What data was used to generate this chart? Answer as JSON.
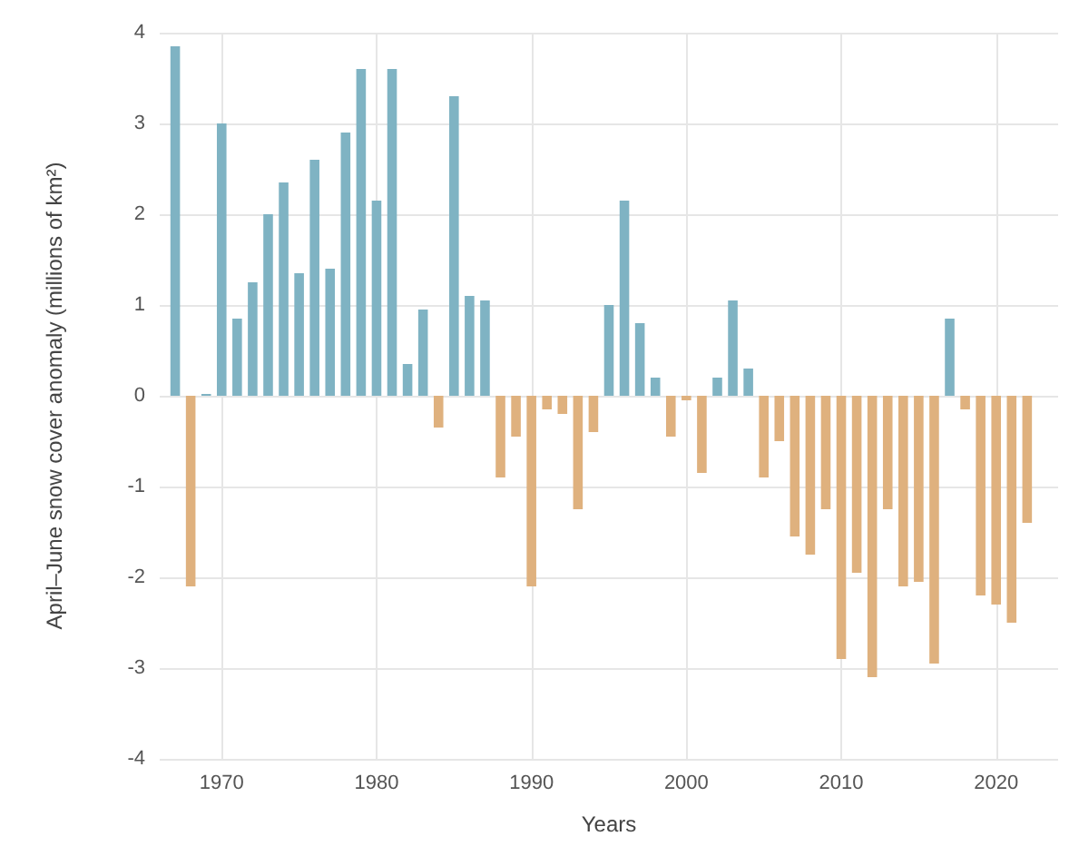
{
  "chart_data": {
    "type": "bar",
    "xlabel": "Years",
    "ylabel": "April–June snow cover anomaly (millions of km²)",
    "x": [
      1967,
      1968,
      1969,
      1970,
      1971,
      1972,
      1973,
      1974,
      1975,
      1976,
      1977,
      1978,
      1979,
      1980,
      1981,
      1982,
      1983,
      1984,
      1985,
      1986,
      1987,
      1988,
      1989,
      1990,
      1991,
      1992,
      1993,
      1994,
      1995,
      1996,
      1997,
      1998,
      1999,
      2000,
      2001,
      2002,
      2003,
      2004,
      2005,
      2006,
      2007,
      2008,
      2009,
      2010,
      2011,
      2012,
      2013,
      2014,
      2015,
      2016,
      2017,
      2018,
      2019,
      2020,
      2021,
      2022
    ],
    "values": [
      3.85,
      -2.1,
      0.02,
      3.0,
      0.85,
      1.25,
      2.0,
      2.35,
      1.35,
      2.6,
      1.4,
      2.9,
      3.6,
      2.15,
      3.6,
      0.35,
      0.95,
      -0.35,
      3.3,
      1.1,
      1.05,
      -0.9,
      -0.45,
      -2.1,
      -0.15,
      -0.2,
      -1.25,
      -0.4,
      1.0,
      2.15,
      0.8,
      0.2,
      -0.45,
      -0.05,
      -0.85,
      0.2,
      1.05,
      0.3,
      -0.9,
      -0.5,
      -1.55,
      -1.75,
      -1.25,
      -2.9,
      -1.95,
      -3.1,
      -1.25,
      -2.1,
      -2.05,
      -2.95,
      0.85,
      -0.15,
      -2.2,
      -2.3,
      -2.5,
      -1.4
    ],
    "colors": [
      "#7fb3c3",
      "#dfb17e",
      "#7fb3c3",
      "#7fb3c3",
      "#7fb3c3",
      "#7fb3c3",
      "#7fb3c3",
      "#7fb3c3",
      "#7fb3c3",
      "#7fb3c3",
      "#7fb3c3",
      "#7fb3c3",
      "#7fb3c3",
      "#7fb3c3",
      "#7fb3c3",
      "#7fb3c3",
      "#7fb3c3",
      "#dfb17e",
      "#7fb3c3",
      "#7fb3c3",
      "#7fb3c3",
      "#dfb17e",
      "#dfb17e",
      "#dfb17e",
      "#dfb17e",
      "#dfb17e",
      "#dfb17e",
      "#dfb17e",
      "#7fb3c3",
      "#7fb3c3",
      "#7fb3c3",
      "#7fb3c3",
      "#dfb17e",
      "#dfb17e",
      "#dfb17e",
      "#7fb3c3",
      "#7fb3c3",
      "#7fb3c3",
      "#dfb17e",
      "#dfb17e",
      "#dfb17e",
      "#dfb17e",
      "#dfb17e",
      "#dfb17e",
      "#dfb17e",
      "#dfb17e",
      "#dfb17e",
      "#dfb17e",
      "#dfb17e",
      "#dfb17e",
      "#7fb3c3",
      "#dfb17e",
      "#dfb17e",
      "#dfb17e",
      "#dfb17e",
      "#dfb17e"
    ],
    "xlim": [
      1966,
      2024
    ],
    "xticks": [
      1970,
      1980,
      1990,
      2000,
      2010,
      2020
    ],
    "ylim": [
      -4,
      4
    ],
    "yticks": [
      -4,
      -3,
      -2,
      -1,
      0,
      1,
      2,
      3,
      4
    ],
    "grid": true
  }
}
